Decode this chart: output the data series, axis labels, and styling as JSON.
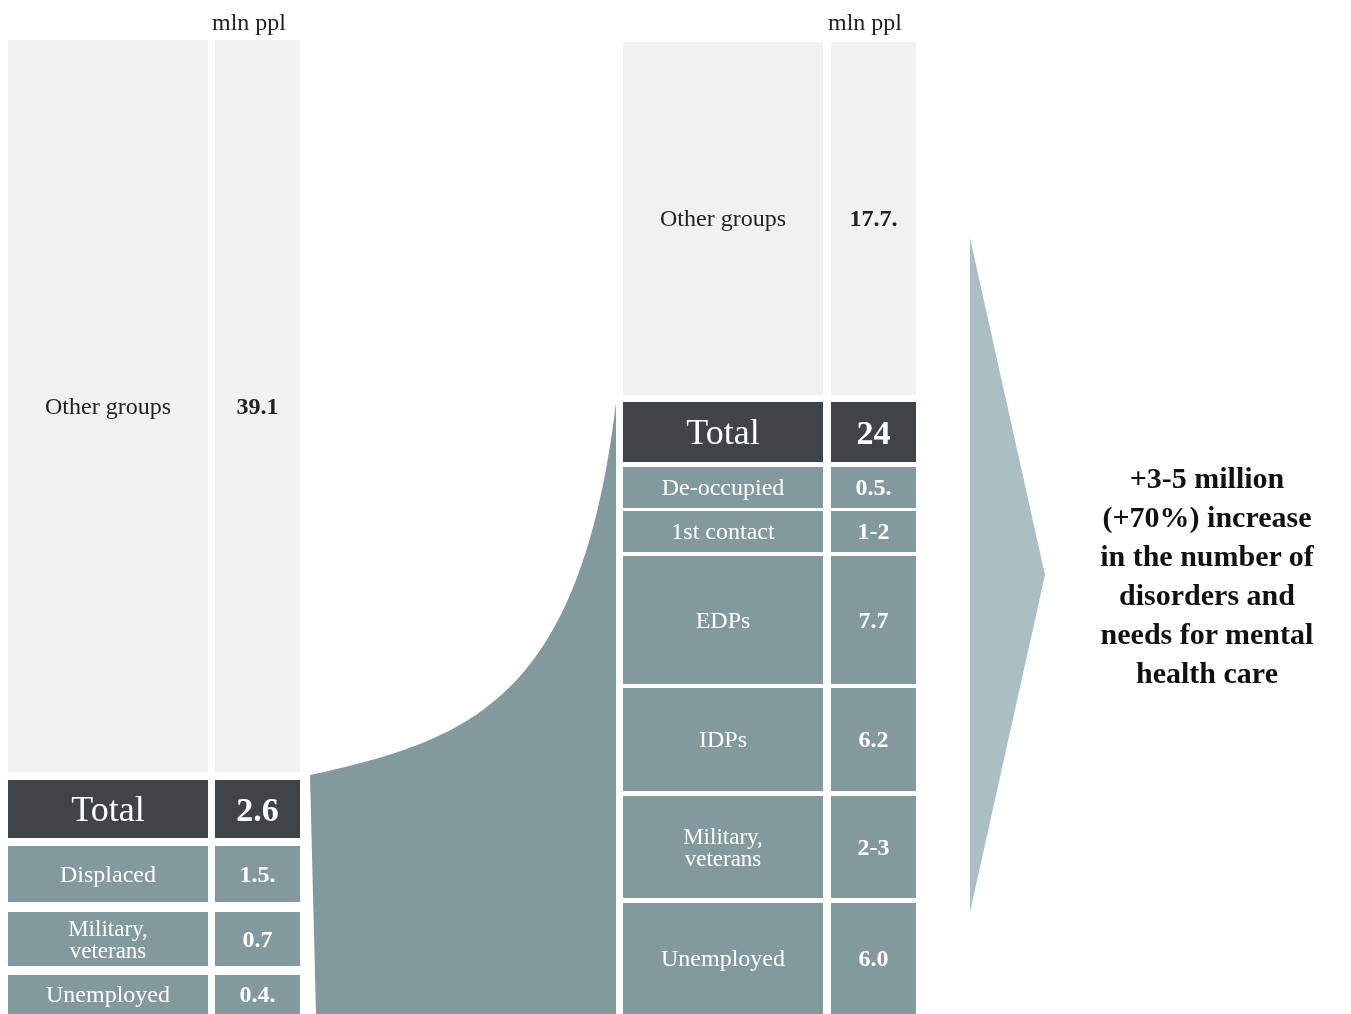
{
  "chart_data": [
    {
      "type": "other",
      "ylabel": "mln ppl",
      "categories": [
        "Other groups",
        "Total",
        "Displaced",
        "Military, veterans",
        "Unemployed"
      ],
      "values": [
        39.1,
        2.6,
        1.5,
        0.7,
        0.4
      ],
      "value_labels": [
        "39.1",
        "2.6",
        "1.5.",
        "0.7",
        "0.4."
      ],
      "colors": [
        "#f1f1f1",
        "#3f4446",
        "#829a9d",
        "#829a9d",
        "#829a9d"
      ]
    },
    {
      "type": "other",
      "ylabel": "mln ppl",
      "categories": [
        "Other groups",
        "Total",
        "De-occupied",
        "1st contact",
        "EDPs",
        "IDPs",
        "Military, veterans",
        "Unemployed"
      ],
      "values": [
        17.7,
        24,
        0.5,
        null,
        7.7,
        6.2,
        null,
        6.0
      ],
      "value_labels": [
        "17.7.",
        "24",
        "0.5.",
        "1-2",
        "7.7",
        "6.2",
        "2-3",
        "6.0"
      ],
      "colors": [
        "#f1f1f1",
        "#3f4446",
        "#829a9d",
        "#829a9d",
        "#829a9d",
        "#829a9d",
        "#829a9d",
        "#829a9d"
      ],
      "annotations": [
        "+3-5 million (+70%) increase in the number of disorders and needs for mental health care"
      ]
    }
  ]
}
